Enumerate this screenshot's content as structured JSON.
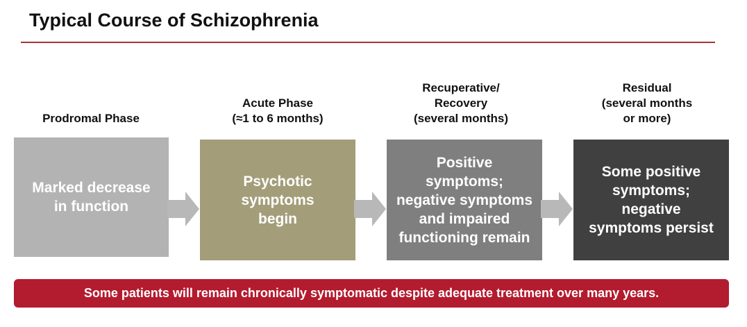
{
  "title": "Typical Course of Schizophrenia",
  "colors": {
    "title_rule": "#a8333a",
    "arrow": "#b8b8b8",
    "banner": "#b31b2f"
  },
  "phases": [
    {
      "label": "Prodromal Phase",
      "description": "Marked decrease\nin function",
      "color": "#b3b3b3"
    },
    {
      "label": "Acute Phase\n(≈1 to 6 months)",
      "description": "Psychotic\nsymptoms\nbegin",
      "color": "#a39d79"
    },
    {
      "label": "Recuperative/\nRecovery\n(several months)",
      "description": "Positive\nsymptoms;\nnegative symptoms\nand impaired\nfunctioning remain",
      "color": "#7f7f7f"
    },
    {
      "label": "Residual\n(several months\nor more)",
      "description": "Some positive\nsymptoms;\nnegative\nsymptoms persist",
      "color": "#404040"
    }
  ],
  "banner": "Some patients will remain chronically symptomatic despite adequate treatment over many years."
}
